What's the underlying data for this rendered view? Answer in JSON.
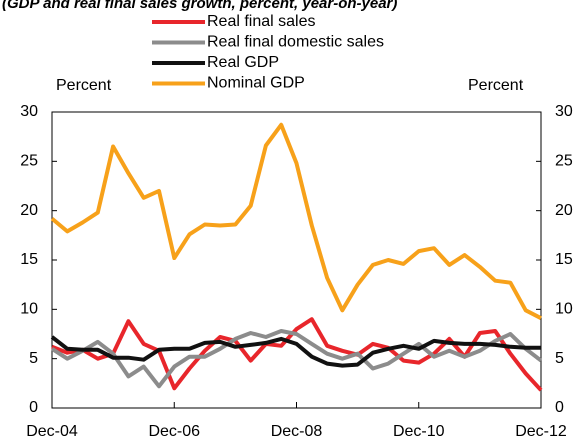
{
  "chart_data": {
    "type": "line",
    "title": "(GDP and real final sales growth, percent, year-on-year)",
    "y_label": "Percent",
    "y2_label": "Percent",
    "categories": [
      "Dec-04",
      null,
      null,
      null,
      null,
      null,
      null,
      null,
      "Dec-06",
      null,
      null,
      null,
      null,
      null,
      null,
      null,
      "Dec-08",
      null,
      null,
      null,
      null,
      null,
      null,
      null,
      "Dec-10",
      null,
      null,
      null,
      null,
      null,
      null,
      null,
      "Dec-12"
    ],
    "series": [
      {
        "name": "Real final sales",
        "color": "#e8262b",
        "values": [
          6.2,
          5.6,
          5.9,
          5.0,
          5.5,
          8.8,
          6.5,
          5.8,
          2.0,
          4.0,
          5.8,
          7.2,
          6.8,
          4.8,
          6.5,
          6.3,
          8.0,
          9.0,
          6.3,
          5.8,
          5.4,
          6.5,
          6.1,
          4.8,
          4.6,
          5.5,
          7.0,
          5.2,
          7.6,
          7.8,
          5.5,
          3.5,
          1.8
        ]
      },
      {
        "name": "Real final domestic sales",
        "color": "#8c8c8c",
        "values": [
          6.0,
          5.0,
          5.8,
          6.7,
          5.5,
          3.2,
          4.2,
          2.2,
          4.2,
          5.2,
          5.2,
          6.0,
          7.0,
          7.6,
          7.2,
          7.8,
          7.5,
          6.5,
          5.5,
          5.0,
          5.5,
          4.0,
          4.5,
          5.5,
          6.5,
          5.2,
          5.8,
          5.2,
          5.8,
          6.8,
          7.5,
          6.0,
          4.8
        ]
      },
      {
        "name": "Real GDP",
        "color": "#111111",
        "values": [
          7.2,
          6.0,
          5.9,
          5.9,
          5.1,
          5.1,
          4.9,
          5.9,
          6.0,
          6.0,
          6.6,
          6.7,
          6.2,
          6.4,
          6.6,
          7.0,
          6.5,
          5.2,
          4.5,
          4.3,
          4.4,
          5.6,
          6.0,
          6.3,
          6.0,
          6.8,
          6.6,
          6.5,
          6.5,
          6.4,
          6.2,
          6.1,
          6.1
        ]
      },
      {
        "name": "Nominal GDP",
        "color": "#f7a11a",
        "values": [
          19.2,
          17.9,
          18.8,
          19.8,
          26.5,
          23.8,
          21.3,
          22.0,
          15.2,
          17.6,
          18.6,
          18.5,
          18.6,
          20.5,
          26.6,
          28.7,
          24.8,
          18.5,
          13.2,
          9.9,
          12.5,
          14.5,
          15.0,
          14.6,
          15.9,
          16.2,
          14.5,
          15.5,
          14.3,
          12.9,
          12.7,
          9.9,
          9.1
        ]
      }
    ],
    "ylim": [
      0,
      30
    ],
    "yticks": [
      0,
      5,
      10,
      15,
      20,
      25,
      30
    ]
  }
}
